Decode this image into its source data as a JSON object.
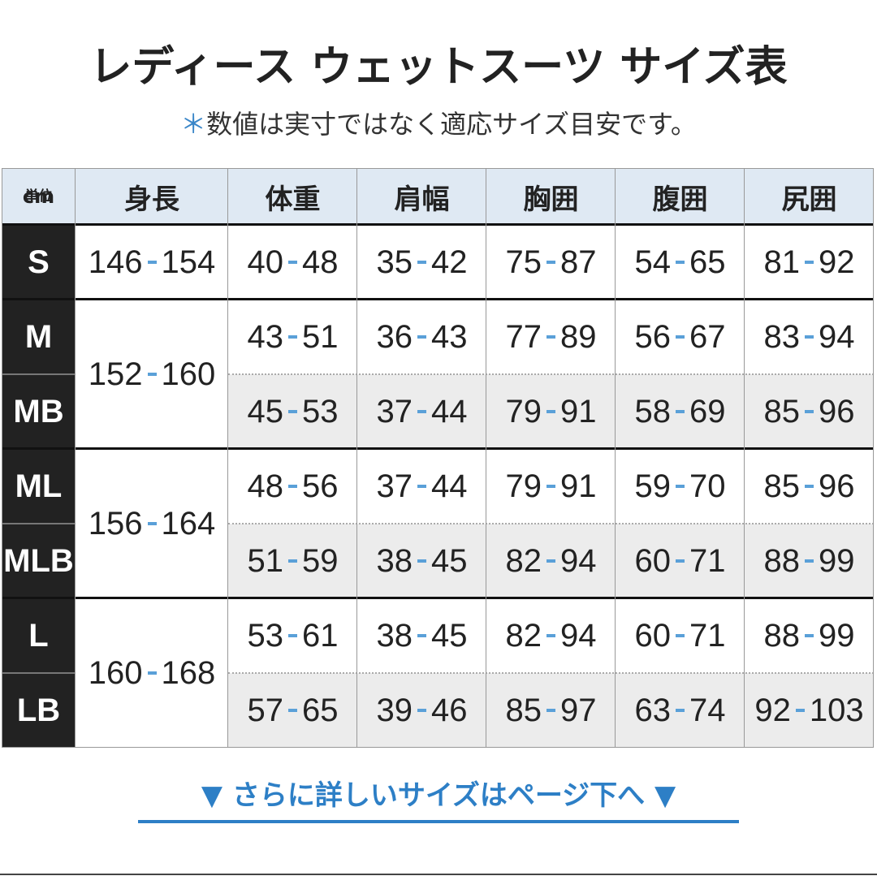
{
  "title": "レディース ウェットスーツ サイズ表",
  "note": {
    "mark": "＊",
    "text": "数値は実寸ではなく適応サイズ目安です。"
  },
  "table": {
    "corner": [
      "単位",
      "cm"
    ],
    "headers": [
      "身長",
      "体重",
      "肩幅",
      "胸囲",
      "腹囲",
      "尻囲"
    ],
    "groups": [
      {
        "height": [
          "146",
          "154"
        ],
        "rows": [
          {
            "size": "S",
            "cells": [
              [
                "40",
                "48"
              ],
              [
                "35",
                "42"
              ],
              [
                "75",
                "87"
              ],
              [
                "54",
                "65"
              ],
              [
                "81",
                "92"
              ]
            ]
          }
        ]
      },
      {
        "height": [
          "152",
          "160"
        ],
        "rows": [
          {
            "size": "M",
            "cells": [
              [
                "43",
                "51"
              ],
              [
                "36",
                "43"
              ],
              [
                "77",
                "89"
              ],
              [
                "56",
                "67"
              ],
              [
                "83",
                "94"
              ]
            ]
          },
          {
            "size": "MB",
            "cells": [
              [
                "45",
                "53"
              ],
              [
                "37",
                "44"
              ],
              [
                "79",
                "91"
              ],
              [
                "58",
                "69"
              ],
              [
                "85",
                "96"
              ]
            ]
          }
        ]
      },
      {
        "height": [
          "156",
          "164"
        ],
        "rows": [
          {
            "size": "ML",
            "cells": [
              [
                "48",
                "56"
              ],
              [
                "37",
                "44"
              ],
              [
                "79",
                "91"
              ],
              [
                "59",
                "70"
              ],
              [
                "85",
                "96"
              ]
            ]
          },
          {
            "size": "MLB",
            "cells": [
              [
                "51",
                "59"
              ],
              [
                "38",
                "45"
              ],
              [
                "82",
                "94"
              ],
              [
                "60",
                "71"
              ],
              [
                "88",
                "99"
              ]
            ]
          }
        ]
      },
      {
        "height": [
          "160",
          "168"
        ],
        "rows": [
          {
            "size": "L",
            "cells": [
              [
                "53",
                "61"
              ],
              [
                "38",
                "45"
              ],
              [
                "82",
                "94"
              ],
              [
                "60",
                "71"
              ],
              [
                "88",
                "99"
              ]
            ]
          },
          {
            "size": "LB",
            "cells": [
              [
                "57",
                "65"
              ],
              [
                "39",
                "46"
              ],
              [
                "85",
                "97"
              ],
              [
                "63",
                "74"
              ],
              [
                "92",
                "103"
              ]
            ]
          }
        ]
      }
    ]
  },
  "footer": {
    "arrow_left": "▼",
    "text": "さらに詳しいサイズはページ下へ",
    "arrow_right": "▼"
  }
}
